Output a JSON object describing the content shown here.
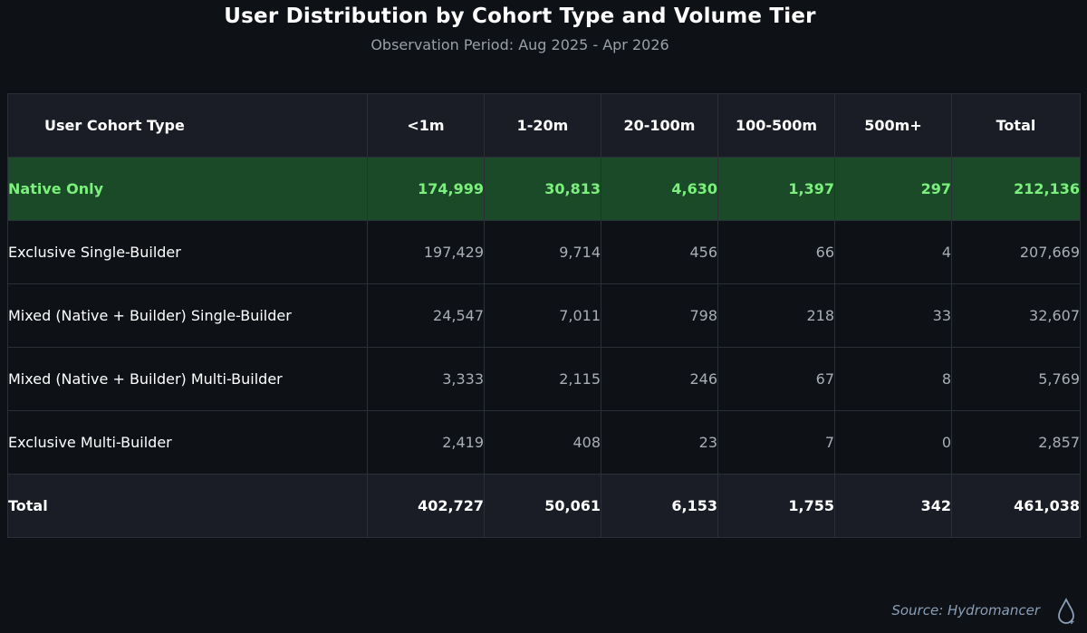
{
  "title": "User Distribution by Cohort Type and Volume Tier",
  "subtitle": "Observation Period: Aug 2025 - Apr 2026",
  "source": "Source: Hydromancer",
  "colors": {
    "background": "#0e1116",
    "header_bg": "#1a1d25",
    "highlight_bg": "#1b4a28",
    "highlight_text": "#7cf07c",
    "number_text": "#a9aeb6"
  },
  "chart_data": {
    "type": "table",
    "title": "User Distribution by Cohort Type and Volume Tier",
    "subtitle": "Observation Period: Aug 2025 - Apr 2026",
    "columns": [
      "User Cohort Type",
      "<1m",
      "1-20m",
      "20-100m",
      "100-500m",
      "500m+",
      "Total"
    ],
    "rows": [
      {
        "label": "Native Only",
        "values": [
          "174,999",
          "30,813",
          "4,630",
          "1,397",
          "297",
          "212,136"
        ],
        "highlight": true
      },
      {
        "label": "Exclusive Single-Builder",
        "values": [
          "197,429",
          "9,714",
          "456",
          "66",
          "4",
          "207,669"
        ]
      },
      {
        "label": "Mixed (Native + Builder) Single-Builder",
        "values": [
          "24,547",
          "7,011",
          "798",
          "218",
          "33",
          "32,607"
        ]
      },
      {
        "label": "Mixed (Native + Builder) Multi-Builder",
        "values": [
          "3,333",
          "2,115",
          "246",
          "67",
          "8",
          "5,769"
        ]
      },
      {
        "label": "Exclusive Multi-Builder",
        "values": [
          "2,419",
          "408",
          "23",
          "7",
          "0",
          "2,857"
        ]
      },
      {
        "label": "Total",
        "values": [
          "402,727",
          "50,061",
          "6,153",
          "1,755",
          "342",
          "461,038"
        ],
        "total": true
      }
    ]
  }
}
